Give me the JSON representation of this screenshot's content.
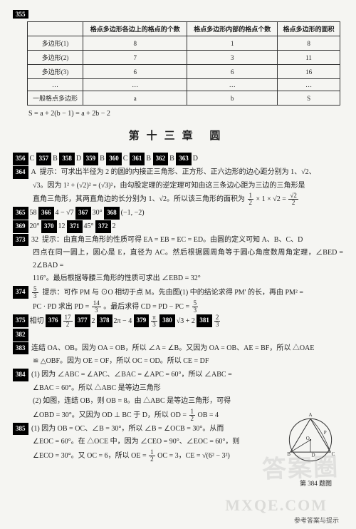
{
  "topnum": "355",
  "table": {
    "headers": [
      "",
      "格点多边形各边上的格点的个数",
      "格点多边形内部的格点个数",
      "格点多边形的面积"
    ],
    "rows": [
      [
        "多边形(1)",
        "8",
        "1",
        "8"
      ],
      [
        "多边形(2)",
        "7",
        "3",
        "11"
      ],
      [
        "多边形(3)",
        "6",
        "6",
        "16"
      ],
      [
        "…",
        "…",
        "…",
        "…"
      ],
      [
        "一般格点多边形",
        "a",
        "b",
        "S"
      ]
    ]
  },
  "formula": "S = a + 2(b − 1) = a + 2b − 2",
  "chapter": "第十三章  圆",
  "row_answers": [
    {
      "n": "356",
      "a": "C"
    },
    {
      "n": "357",
      "a": "B"
    },
    {
      "n": "358",
      "a": "D"
    },
    {
      "n": "359",
      "a": "B"
    },
    {
      "n": "360",
      "a": "C"
    },
    {
      "n": "361",
      "a": "B"
    },
    {
      "n": "362",
      "a": "B"
    },
    {
      "n": "363",
      "a": "D"
    }
  ],
  "q364": {
    "num": "364",
    "ans": "A",
    "hint_a": "提示：可求出半径为 2 的圆的内接正三角形、正方形、正六边形的边心距分别为 1、√2、",
    "hint_b": "√3。因为 1² + (√2)² = (√3)²，由勾股定理的逆定理可知由这三条边心距为三边的三角形是",
    "hint_c": "直角三角形，其两直角边的长分别为 1、√2。所以该三角形的面积为"
  },
  "row_answers2": [
    {
      "n": "365",
      "a": "58"
    },
    {
      "n": "366",
      "a": "4 − √7"
    },
    {
      "n": "367",
      "a": "30°"
    },
    {
      "n": "368",
      "a": "(−1, −2)"
    }
  ],
  "row_answers3": [
    {
      "n": "369",
      "a": "20°"
    },
    {
      "n": "370",
      "a": "12"
    },
    {
      "n": "371",
      "a": "45°"
    },
    {
      "n": "372",
      "a": "2"
    }
  ],
  "q373": {
    "num": "373",
    "ans": "32",
    "l1": "提示：由直角三角形的性质可得 EA = EB = EC = ED。由圆的定义可知 A、B、C、D",
    "l2": "四点在同一圆上，圆心是 E，直径为 AC。然后根据圆周角等于圆心角度数周角定理，∠BED = 2∠BAD =",
    "l3": "116°。最后根据等腰三角形的性质可求出 ∠EBD = 32°"
  },
  "q374": {
    "num": "374",
    "l1": "提示：可作 PM 与 ⊙O 相切于点 M。先由图(1) 中的结论求得 PM' 的长，再由 PM² =",
    "l2": "PC · PD 求出 PD =",
    "l3": "。最后求得 CD = PD − PC ="
  },
  "row_answers4": [
    {
      "n": "375",
      "a": "相切"
    },
    {
      "n": "376",
      "a": ""
    },
    {
      "n": "377",
      "a": "2"
    },
    {
      "n": "378",
      "a": "2π − 4"
    },
    {
      "n": "379",
      "a": ""
    },
    {
      "n": "380",
      "a": "√3 + 2"
    },
    {
      "n": "381",
      "a": ""
    }
  ],
  "q382": {
    "num": "382"
  },
  "q383": {
    "num": "383",
    "l1": "连结 OA、OB。因为 OA = OB，所以 ∠A = ∠B。又因为 OA = OB、AE = BF，所以 △OAE",
    "l2": "≌ △OBF。因为 OE = OF，所以 OC = OD。所以 CE = DF"
  },
  "q384": {
    "num": "384",
    "l1": "(1) 因为 ∠ABC = ∠APC、∠BAC = ∠APC = 60°，所以 ∠ABC =",
    "l2": "∠BAC = 60°。所以 △ABC 是等边三角形",
    "l3": "(2) 如图，连结 OB，则 OB = 8。由 △ABC 是等边三角形，可得",
    "l4": "∠OBD = 30°。又因为 OD ⊥ BC 于 D，所以 OD =",
    "l5": "OB = 4",
    "caption": "第 384 题图"
  },
  "q385": {
    "num": "385",
    "l1": "(1) 因为 OB = OC、∠B = 30°，所以 ∠B = ∠OCB = 30°。从而",
    "l2": "∠EOC = 60°。在 △OCE 中，因为 ∠CEO = 90°、∠EOC = 60°，则",
    "l3": "∠ECO = 30°。又 OC = 6，所以 OE =",
    "l4": "OC = 3，CE = √(6² − 3²)"
  },
  "frac_half_n": "1",
  "frac_half_d": "2",
  "frac_sqrt2_n": "√2",
  "frac_sqrt2_d": "2",
  "frac_53_n": "5",
  "frac_53_d": "3",
  "frac_143_n": "14",
  "frac_143_d": "3",
  "frac_172_n": "17",
  "frac_172_d": "2",
  "frac_pi3_n": "π",
  "frac_pi3_d": "3",
  "frac_23_n": "2",
  "frac_23_d": "3",
  "frac_half2_n": "1",
  "frac_half2_d": "2",
  "frac_half3_n": "1",
  "frac_half3_d": "2",
  "footer": "参考答案与提示",
  "watermark1": "答案圈",
  "watermark2": "MXQE.COM",
  "geom": {
    "labels": {
      "A": "A",
      "B": "B",
      "C": "C",
      "D": "D",
      "O": "O",
      "P": "P"
    },
    "stroke": "#333",
    "fill": "none"
  }
}
